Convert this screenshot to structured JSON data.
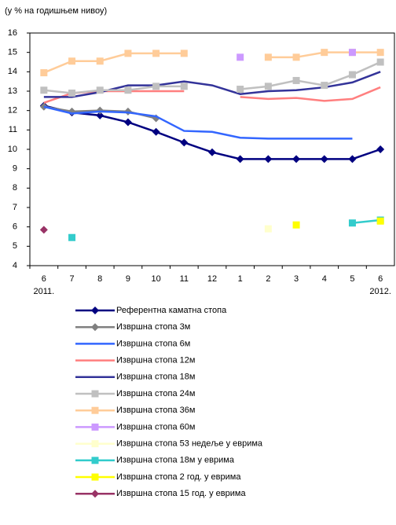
{
  "chart_data": {
    "type": "line",
    "subtitle": "(у % на годишњем нивоу)",
    "categories": [
      "6",
      "7",
      "8",
      "9",
      "10",
      "11",
      "12",
      "1",
      "2",
      "3",
      "4",
      "5",
      "6"
    ],
    "years": [
      "2011.",
      null,
      null,
      null,
      null,
      null,
      null,
      null,
      null,
      null,
      null,
      null,
      "2012."
    ],
    "ylim": [
      4,
      16
    ],
    "yticks": [
      4,
      5,
      6,
      7,
      8,
      9,
      10,
      11,
      12,
      13,
      14,
      15,
      16
    ],
    "series": [
      {
        "name": "Референтна каматна стопа",
        "color": "#000080",
        "marker": "diamond",
        "values": [
          12.25,
          11.9,
          11.75,
          11.4,
          10.9,
          10.35,
          9.85,
          9.5,
          9.5,
          9.5,
          9.5,
          9.5,
          10.0
        ]
      },
      {
        "name": "Извршна стопа 3м",
        "color": "#808080",
        "marker": "diamond",
        "values": [
          12.2,
          11.95,
          12.0,
          11.95,
          11.6,
          null,
          null,
          null,
          null,
          null,
          null,
          null,
          null
        ]
      },
      {
        "name": "Извршна стопа 6м",
        "color": "#3366ff",
        "marker": "none",
        "values": [
          12.2,
          11.85,
          11.95,
          11.9,
          11.7,
          10.95,
          10.9,
          10.6,
          10.55,
          10.55,
          10.55,
          10.55,
          null
        ]
      },
      {
        "name": "Извршна стопа 12м",
        "color": "#ff7f7f",
        "marker": "none",
        "values": [
          12.4,
          12.9,
          13.0,
          13.0,
          13.0,
          13.0,
          null,
          12.7,
          12.6,
          12.65,
          12.5,
          12.6,
          13.2
        ]
      },
      {
        "name": "Извршна стопа 18м",
        "color": "#333399",
        "marker": "none",
        "values": [
          12.7,
          12.7,
          12.95,
          13.3,
          13.3,
          13.5,
          13.3,
          12.85,
          13.0,
          13.05,
          13.2,
          13.45,
          14.0
        ]
      },
      {
        "name": "Извршна стопа 24м",
        "color": "#c0c0c0",
        "marker": "square",
        "values": [
          13.05,
          12.9,
          13.05,
          13.05,
          13.25,
          13.25,
          null,
          13.1,
          13.25,
          13.55,
          13.3,
          13.85,
          14.5
        ]
      },
      {
        "name": "Извршна стопа 36м",
        "color": "#ffcc99",
        "marker": "square",
        "values": [
          13.95,
          14.55,
          14.55,
          14.95,
          14.95,
          14.95,
          null,
          null,
          14.75,
          14.75,
          15.0,
          15.0,
          15.0
        ]
      },
      {
        "name": "Извршна стопа 60м",
        "color": "#cc99ff",
        "marker": "square",
        "values": [
          null,
          null,
          null,
          null,
          null,
          null,
          null,
          14.75,
          null,
          null,
          null,
          15.0,
          null
        ]
      },
      {
        "name": "Извршна стопа 53 недеље у еврима",
        "color": "#ffffcc",
        "marker": "square",
        "values": [
          null,
          null,
          null,
          null,
          null,
          null,
          null,
          null,
          5.9,
          null,
          null,
          null,
          null
        ]
      },
      {
        "name": "Извршна стопа 18м у еврима",
        "color": "#33cccc",
        "marker": "square",
        "values": [
          null,
          5.45,
          null,
          null,
          null,
          null,
          null,
          null,
          null,
          null,
          null,
          6.2,
          6.35
        ]
      },
      {
        "name": "Извршна стопа 2 год. у еврима",
        "color": "#ffff00",
        "marker": "square",
        "values": [
          null,
          null,
          null,
          null,
          null,
          null,
          null,
          null,
          null,
          6.1,
          null,
          null,
          6.3
        ]
      },
      {
        "name": "Извршна стопа 15 год. у еврима",
        "color": "#993366",
        "marker": "diamond",
        "values": [
          5.85,
          null,
          null,
          null,
          null,
          null,
          null,
          null,
          null,
          null,
          null,
          null,
          null
        ]
      }
    ]
  }
}
